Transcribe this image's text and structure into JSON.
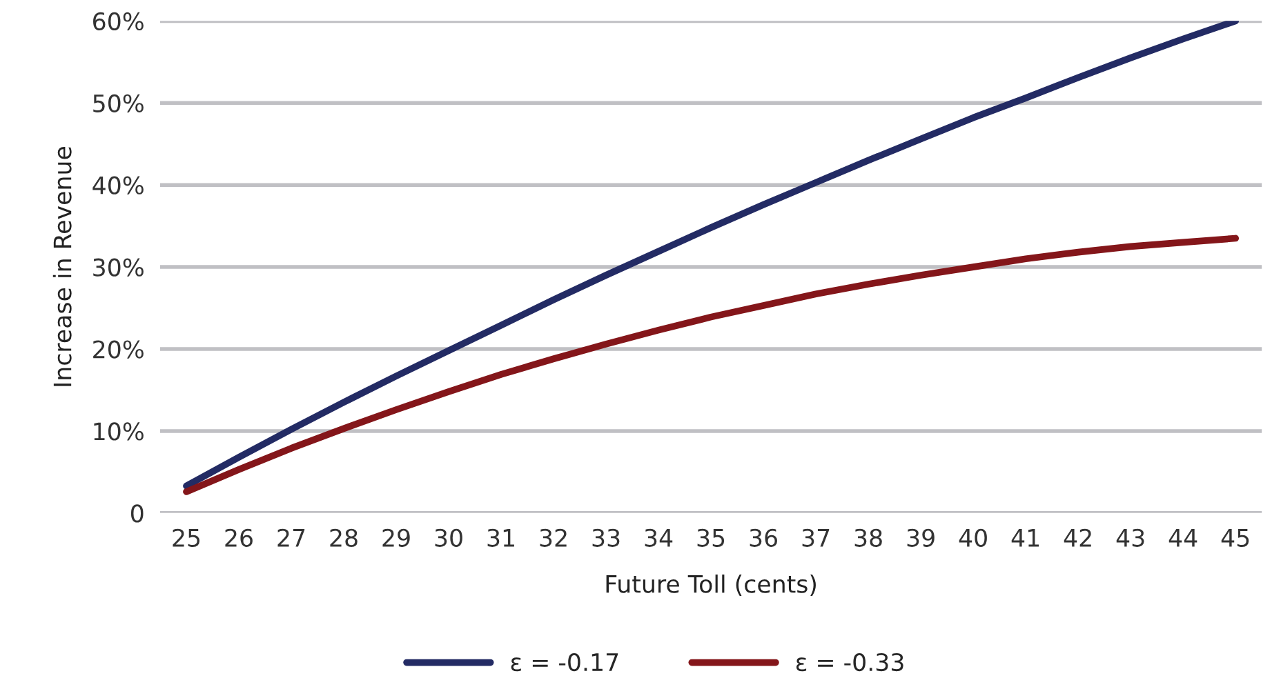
{
  "chart_data": {
    "type": "line",
    "xlabel": "Future Toll (cents)",
    "ylabel": "Increase in Revenue",
    "categories": [
      "25",
      "26",
      "27",
      "28",
      "29",
      "30",
      "31",
      "32",
      "33",
      "34",
      "35",
      "36",
      "37",
      "38",
      "39",
      "40",
      "41",
      "42",
      "43",
      "44",
      "45"
    ],
    "series": [
      {
        "name": "ε = -0.17",
        "color": "#232b64",
        "values": [
          3.3,
          6.8,
          10.2,
          13.5,
          16.7,
          19.8,
          22.9,
          26.0,
          29.0,
          31.9,
          34.8,
          37.6,
          40.3,
          43.0,
          45.6,
          48.2,
          50.6,
          53.1,
          55.5,
          57.8,
          60.0
        ]
      },
      {
        "name": "ε = -0.33",
        "color": "#84161a",
        "values": [
          2.6,
          5.3,
          7.9,
          10.3,
          12.6,
          14.8,
          16.9,
          18.8,
          20.6,
          22.3,
          23.9,
          25.3,
          26.7,
          27.9,
          29.0,
          30.0,
          31.0,
          31.8,
          32.5,
          33.0,
          33.5
        ]
      }
    ],
    "ylim": [
      0,
      60
    ],
    "yticks": [
      {
        "value": 0,
        "label": "0"
      },
      {
        "value": 10,
        "label": "10%"
      },
      {
        "value": 20,
        "label": "20%"
      },
      {
        "value": 30,
        "label": "30%"
      },
      {
        "value": 40,
        "label": "40%"
      },
      {
        "value": 50,
        "label": "50%"
      },
      {
        "value": 60,
        "label": "60%"
      }
    ],
    "grid": "y",
    "legend": "bottom",
    "marker": "none",
    "line_style": "solid"
  }
}
